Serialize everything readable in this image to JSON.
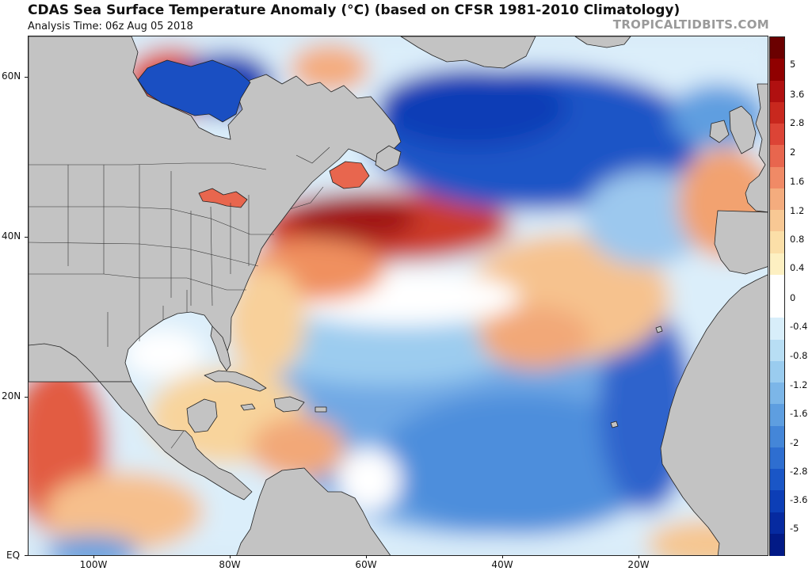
{
  "header": {
    "title": "CDAS Sea Surface Temperature Anomaly (°C) (based on CFSR 1981-2010 Climatology)",
    "subtitle": "Analysis Time: 06z Aug 05 2018",
    "credit": "TROPICALTIDBITS.COM"
  },
  "axes": {
    "lat_labels": [
      "60N",
      "40N",
      "20N",
      "EQ"
    ],
    "lon_labels": [
      "100W",
      "80W",
      "60W",
      "40W",
      "20W"
    ]
  },
  "colorbar": {
    "labels": [
      "5",
      "3.6",
      "2.8",
      "2",
      "1.6",
      "1.2",
      "0.8",
      "0.4",
      "0",
      "-0.4",
      "-0.8",
      "-1.2",
      "-1.6",
      "-2",
      "-2.8",
      "-3.6",
      "-5"
    ],
    "colors": [
      "#6b0000",
      "#900000",
      "#b01010",
      "#c8281e",
      "#dc4436",
      "#e8664e",
      "#f08a66",
      "#f4ac7e",
      "#f8c894",
      "#fbdfa8",
      "#fdf0c2",
      "#ffffff",
      "#ffffff",
      "#d8eefa",
      "#b8def4",
      "#9accef",
      "#7cb6e8",
      "#5e9ee0",
      "#4486d8",
      "#2e6ed0",
      "#1a56c6",
      "#0c3eb6",
      "#062aa0",
      "#021a86"
    ]
  },
  "colors": {
    "land": "#c3c3c3",
    "border": "#222222"
  }
}
